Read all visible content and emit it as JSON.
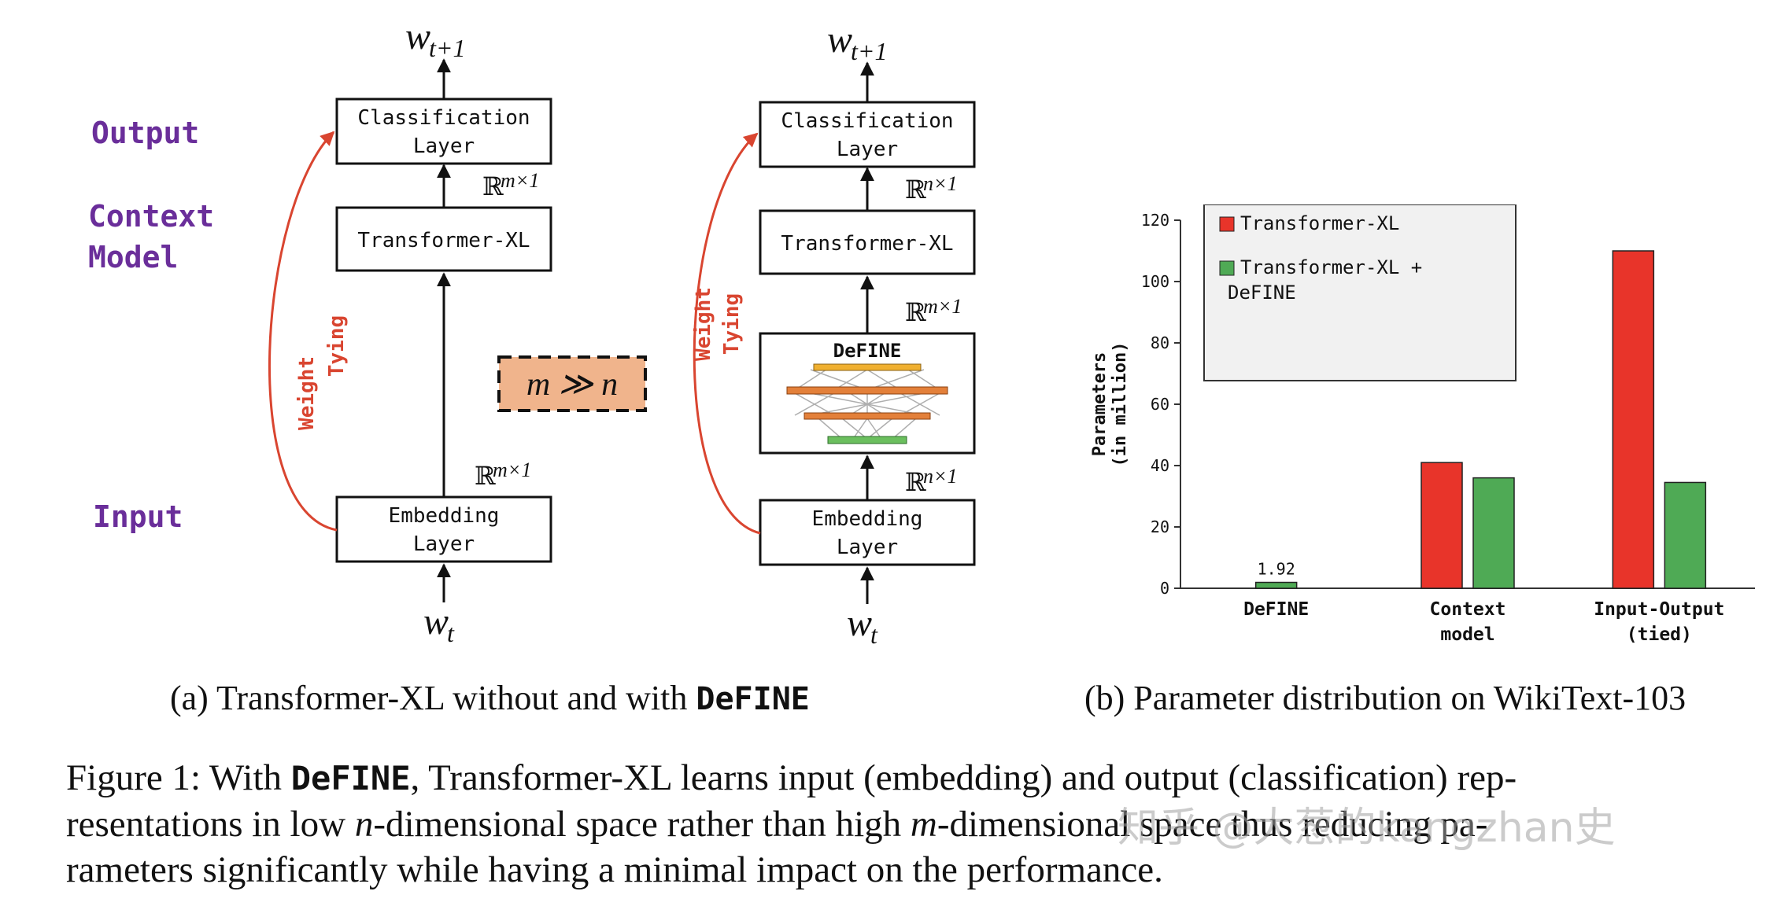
{
  "panel_a": {
    "side_labels": {
      "output": "Output",
      "context": "Context",
      "model": "Model",
      "input": "Input"
    },
    "left": {
      "top_symbol": "w",
      "top_sub": "t+1",
      "cls_line1": "Classification",
      "cls_line2": "Layer",
      "dim_top": "m×1",
      "transformer": "Transformer-XL",
      "dim_bottom": "m×1",
      "emb_line1": "Embedding",
      "emb_line2": "Layer",
      "bottom_symbol": "w",
      "bottom_sub": "t",
      "tying_line1": "Weight",
      "tying_line2": "Tying"
    },
    "middle_badge": "m ≫ n",
    "right": {
      "top_symbol": "w",
      "top_sub": "t+1",
      "cls_line1": "Classification",
      "cls_line2": "Layer",
      "dim_top": "n×1",
      "transformer": "Transformer-XL",
      "dim_mid": "m×1",
      "define_label": "DeFINE",
      "dim_bottom": "n×1",
      "emb_line1": "Embedding",
      "emb_line2": "Layer",
      "bottom_symbol": "w",
      "bottom_sub": "t",
      "tying_line1": "Weight",
      "tying_line2": "Tying"
    },
    "real_symbol": "ℝ",
    "caption_prefix": "(a) Transformer-XL without and with ",
    "caption_bold": "DeFINE"
  },
  "panel_b": {
    "caption": "(b) Parameter distribution on WikiText-103"
  },
  "chart_data": {
    "type": "bar",
    "categories": [
      "DeFINE",
      "Context model",
      "Input-Output (tied)"
    ],
    "category_lines": [
      [
        "DeFINE"
      ],
      [
        "Context",
        "model"
      ],
      [
        "Input-Output",
        "(tied)"
      ]
    ],
    "series": [
      {
        "name": "Transformer-XL",
        "values": [
          null,
          41,
          110
        ]
      },
      {
        "name": "Transformer-XL + DeFINE",
        "values": [
          1.92,
          36,
          34.5
        ]
      }
    ],
    "series_label_lines": [
      [
        "Transformer-XL"
      ],
      [
        "Transformer-XL +",
        "DeFINE"
      ]
    ],
    "colors": [
      "#e8342a",
      "#4faa55"
    ],
    "data_labels": [
      {
        "series": 1,
        "index": 0,
        "text": "1.92"
      }
    ],
    "ylabel_lines": [
      "Parameters",
      "(in million)"
    ],
    "ylim": [
      0,
      120
    ],
    "yticks": [
      0,
      20,
      40,
      60,
      80,
      100,
      120
    ],
    "legend": "top-left",
    "grid": false
  },
  "figure_caption": {
    "prefix": "Figure 1: With ",
    "bold": "DeFINE",
    "part1": ", Transformer-XL learns input (embedding) and output (classification) rep-",
    "part2a": "resentations in low ",
    "n": "n",
    "part2b": "-dimensional space rather than high ",
    "m": "m",
    "part2c": "-dimensional space thus reducing pa-",
    "part3": "rameters significantly while having a minimal impact on the performance."
  },
  "watermark": "知乎 @大葱的kangzhan史"
}
